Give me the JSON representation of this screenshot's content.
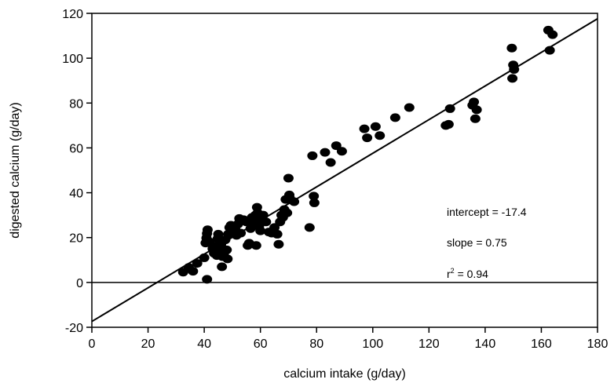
{
  "chart_data": {
    "type": "scatter",
    "xlabel": "calcium intake (g/day)",
    "ylabel": "digested calcium (g/day)",
    "xlim": [
      0,
      180
    ],
    "ylim": [
      -20,
      120
    ],
    "x_ticks": [
      0,
      20,
      40,
      60,
      80,
      100,
      120,
      140,
      160,
      180
    ],
    "y_ticks": [
      -20,
      0,
      20,
      40,
      60,
      80,
      100,
      120
    ],
    "grid": false,
    "reference_line_y": 0,
    "regression": {
      "intercept": -17.4,
      "slope": 0.75
    },
    "annotations": {
      "intercept": "intercept = -17.4",
      "slope": "slope = 0.75",
      "r2_prefix": "r",
      "r2_sup": "2",
      "r2_suffix": " = 0.94"
    },
    "points": [
      [
        32.5,
        4.6
      ],
      [
        34.5,
        6.7
      ],
      [
        36,
        5.0
      ],
      [
        37.5,
        8.5
      ],
      [
        40,
        11.0
      ],
      [
        41,
        1.4
      ],
      [
        40.5,
        17.6
      ],
      [
        40.8,
        19.8
      ],
      [
        41,
        21.8
      ],
      [
        41.2,
        23.5
      ],
      [
        42,
        18.0
      ],
      [
        43,
        15.0
      ],
      [
        43.5,
        13.0
      ],
      [
        44,
        16.0
      ],
      [
        44.5,
        12.0
      ],
      [
        44.8,
        19.5
      ],
      [
        45,
        21.5
      ],
      [
        45.5,
        14.5
      ],
      [
        46,
        17.0
      ],
      [
        46.3,
        7.0
      ],
      [
        46.5,
        11.5
      ],
      [
        47,
        13.0
      ],
      [
        47.5,
        19.0
      ],
      [
        48,
        14.5
      ],
      [
        48.3,
        10.5
      ],
      [
        48.5,
        21.5
      ],
      [
        49,
        24.5
      ],
      [
        49.5,
        25.5
      ],
      [
        50,
        23.0
      ],
      [
        51,
        24.0
      ],
      [
        51.5,
        21.0
      ],
      [
        52,
        26.0
      ],
      [
        52.5,
        28.5
      ],
      [
        53,
        22.0
      ],
      [
        54,
        28.0
      ],
      [
        55,
        27.0
      ],
      [
        55.5,
        16.5
      ],
      [
        56,
        17.5
      ],
      [
        56.5,
        24.0
      ],
      [
        57,
        29.0
      ],
      [
        57.5,
        27.5
      ],
      [
        58,
        26.0
      ],
      [
        58.2,
        30.0
      ],
      [
        58.5,
        16.5
      ],
      [
        58.8,
        33.5
      ],
      [
        59,
        31.0
      ],
      [
        59.5,
        25.0
      ],
      [
        60,
        23.0
      ],
      [
        60.5,
        27.5
      ],
      [
        61,
        30.0
      ],
      [
        62,
        27.0
      ],
      [
        63,
        22.5
      ],
      [
        64,
        22.0
      ],
      [
        65,
        24.5
      ],
      [
        66,
        21.5
      ],
      [
        66.5,
        17.0
      ],
      [
        67,
        27.0
      ],
      [
        67.5,
        30.0
      ],
      [
        68,
        29.0
      ],
      [
        68.5,
        32.5
      ],
      [
        69,
        37.0
      ],
      [
        69.5,
        31.0
      ],
      [
        70,
        46.5
      ],
      [
        70.3,
        39.0
      ],
      [
        70.5,
        37.5
      ],
      [
        72,
        36.0
      ],
      [
        77.5,
        24.5
      ],
      [
        78.5,
        56.5
      ],
      [
        79,
        38.5
      ],
      [
        79.2,
        35.5
      ],
      [
        83,
        58.0
      ],
      [
        85,
        53.5
      ],
      [
        87,
        61.0
      ],
      [
        89,
        58.5
      ],
      [
        97,
        68.5
      ],
      [
        98,
        64.5
      ],
      [
        101,
        69.5
      ],
      [
        102.5,
        65.5
      ],
      [
        108,
        73.5
      ],
      [
        113,
        78.0
      ],
      [
        126,
        70.0
      ],
      [
        127,
        70.5
      ],
      [
        127.5,
        77.5
      ],
      [
        135.5,
        79.0
      ],
      [
        136,
        80.5
      ],
      [
        136.5,
        73.0
      ],
      [
        137,
        77.0
      ],
      [
        149.5,
        104.5
      ],
      [
        149.7,
        91.0
      ],
      [
        150,
        97.0
      ],
      [
        150.3,
        95.0
      ],
      [
        162.5,
        112.5
      ],
      [
        163,
        103.5
      ],
      [
        164,
        110.5
      ]
    ]
  }
}
